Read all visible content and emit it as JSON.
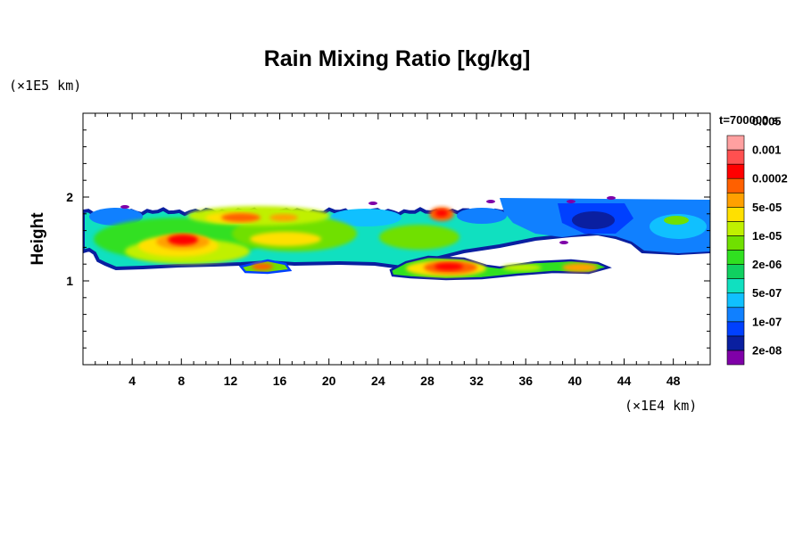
{
  "chart_data": {
    "type": "heatmap",
    "title": "Rain Mixing Ratio [kg/kg]",
    "ylabel": "Height",
    "y_multiplier": "(×1E5 km)",
    "x_multiplier": "(×1E4 km)",
    "time_label": "t=700000 s",
    "xlim": [
      0,
      51
    ],
    "ylim": [
      0,
      3
    ],
    "x_ticks": [
      "4",
      "8",
      "12",
      "16",
      "20",
      "24",
      "28",
      "32",
      "36",
      "40",
      "44",
      "48"
    ],
    "x_tick_values": [
      4,
      8,
      12,
      16,
      20,
      24,
      28,
      32,
      36,
      40,
      44,
      48
    ],
    "y_ticks": [
      "1",
      "2"
    ],
    "y_tick_values": [
      1,
      2
    ],
    "colorbar": {
      "colors": [
        "#7f00a8",
        "#0a1fa0",
        "#0040ff",
        "#1080ff",
        "#10c0ff",
        "#10e0c0",
        "#10d060",
        "#30e020",
        "#70e000",
        "#c0f000",
        "#ffe000",
        "#ffa000",
        "#ff6000",
        "#ff0000",
        "#ff5050",
        "#ffa0a0"
      ],
      "labels": [
        "2e-08",
        "1e-07",
        "5e-07",
        "2e-06",
        "1e-05",
        "5e-05",
        "0.0002",
        "0.001",
        "0.005"
      ]
    },
    "field": {
      "layer_top_y": 1.9,
      "layer_bottom_y": 1.1,
      "cores": [
        {
          "x": 8.5,
          "y": 1.45,
          "level": "0.001"
        },
        {
          "x": 29.5,
          "y": 1.15,
          "level": "0.001"
        },
        {
          "x": 29,
          "y": 1.8,
          "level": "0.0002"
        },
        {
          "x": 14.5,
          "y": 1.8,
          "level": "0.0002"
        }
      ]
    }
  }
}
